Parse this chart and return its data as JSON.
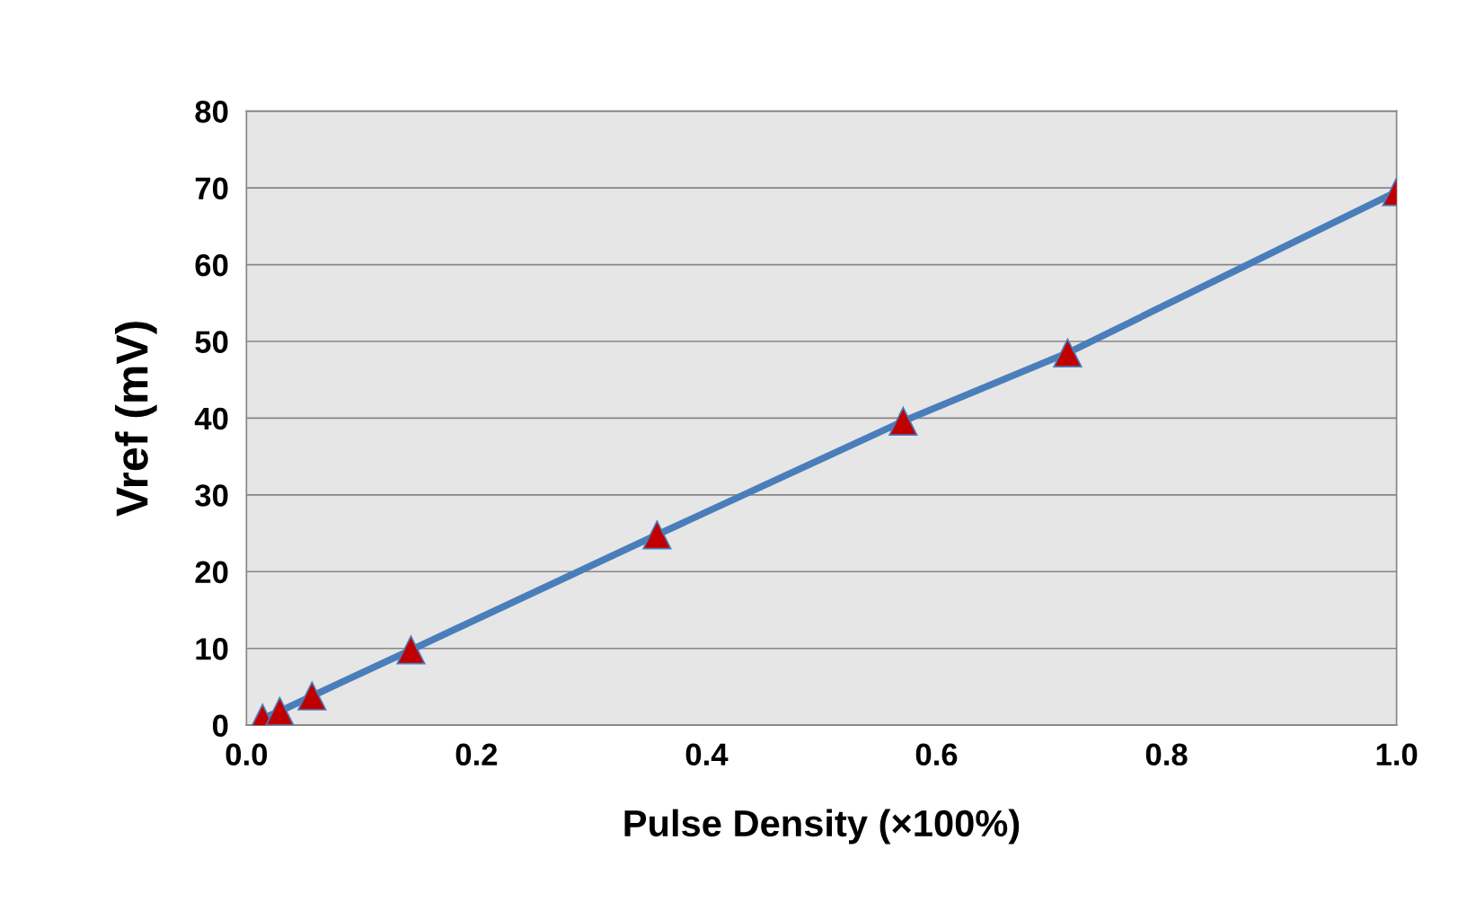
{
  "chart_data": {
    "type": "line",
    "xlabel": "Pulse Density (×100%)",
    "ylabel": "Vref (mV)",
    "x": [
      0.014,
      0.029,
      0.057,
      0.143,
      0.357,
      0.571,
      0.714,
      1.0
    ],
    "series": [
      {
        "color": "#4a7ebb",
        "values": [
          0.9,
          1.8,
          3.8,
          9.8,
          24.8,
          39.6,
          48.5,
          69.5
        ]
      }
    ],
    "xlim": [
      0.0,
      1.0
    ],
    "xticks": [
      {
        "value": 0,
        "label": "0.0"
      },
      0.2,
      0.4,
      0.6,
      0.8,
      {
        "value": 1,
        "label": "1.0"
      }
    ],
    "ylim": [
      0,
      80
    ],
    "yticks": [
      0,
      10,
      20,
      30,
      40,
      50,
      60,
      70,
      80
    ],
    "grid": "y",
    "marker": "triangle",
    "line_style": "solid",
    "legend": false
  }
}
